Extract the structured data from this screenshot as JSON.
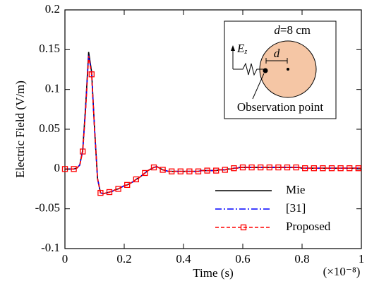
{
  "chart_data": {
    "type": "line",
    "xlabel": "Time (s)",
    "ylabel": "Electric Field (V/m)",
    "x_scale_note": "(×10⁻⁸)",
    "x": [
      0,
      0.01,
      0.02,
      0.03,
      0.04,
      0.05,
      0.06,
      0.07,
      0.08,
      0.09,
      0.1,
      0.11,
      0.12,
      0.13,
      0.14,
      0.15,
      0.16,
      0.17,
      0.18,
      0.19,
      0.2,
      0.21,
      0.22,
      0.23,
      0.24,
      0.25,
      0.26,
      0.27,
      0.28,
      0.29,
      0.3,
      0.31,
      0.32,
      0.33,
      0.34,
      0.35,
      0.36,
      0.37,
      0.38,
      0.39,
      0.4,
      0.41,
      0.42,
      0.43,
      0.44,
      0.45,
      0.46,
      0.47,
      0.48,
      0.49,
      0.5,
      0.51,
      0.52,
      0.53,
      0.54,
      0.55,
      0.56,
      0.57,
      0.58,
      0.59,
      0.6,
      0.61,
      0.62,
      0.63,
      0.64,
      0.65,
      0.66,
      0.67,
      0.68,
      0.69,
      0.7,
      0.71,
      0.72,
      0.73,
      0.74,
      0.75,
      0.76,
      0.77,
      0.78,
      0.79,
      0.8,
      0.81,
      0.82,
      0.83,
      0.84,
      0.85,
      0.86,
      0.87,
      0.88,
      0.89,
      0.9,
      0.91,
      0.92,
      0.93,
      0.94,
      0.95,
      0.96,
      0.97,
      0.98,
      0.99,
      1
    ],
    "series": [
      {
        "name": "Mie",
        "color": "#000000",
        "dash": "",
        "markers": false,
        "values": [
          0,
          0,
          0,
          0,
          0.001,
          0.005,
          0.024,
          0.08,
          0.147,
          0.122,
          0.05,
          -0.012,
          -0.03,
          -0.031,
          -0.03,
          -0.029,
          -0.028,
          -0.026,
          -0.025,
          -0.023,
          -0.021,
          -0.02,
          -0.018,
          -0.016,
          -0.013,
          -0.011,
          -0.008,
          -0.005,
          -0.002,
          0,
          0.002,
          0.003,
          0.001,
          -0.001,
          -0.002,
          -0.003,
          -0.003,
          -0.003,
          -0.003,
          -0.003,
          -0.003,
          -0.003,
          -0.003,
          -0.003,
          -0.003,
          -0.003,
          -0.002,
          -0.002,
          -0.002,
          -0.002,
          -0.002,
          -0.002,
          -0.001,
          -0.001,
          -0.001,
          0,
          0,
          0.001,
          0.001,
          0.002,
          0.002,
          0.002,
          0.002,
          0.002,
          0.002,
          0.002,
          0.002,
          0.002,
          0.002,
          0.002,
          0.002,
          0.002,
          0.002,
          0.002,
          0.002,
          0.002,
          0.002,
          0.002,
          0.002,
          0.002,
          0.001,
          0.001,
          0.001,
          0.001,
          0.001,
          0.001,
          0.001,
          0.001,
          0.001,
          0.001,
          0.001,
          0.001,
          0.001,
          0.001,
          0.001,
          0.001,
          0.001,
          0.001,
          0.001,
          0.001,
          0.001
        ]
      },
      {
        "name": "[31]",
        "color": "#0000ff",
        "dash": "9 3 2 3",
        "markers": false,
        "values": [
          0,
          0,
          0,
          0,
          0.001,
          0.005,
          0.023,
          0.078,
          0.144,
          0.12,
          0.05,
          -0.012,
          -0.03,
          -0.031,
          -0.03,
          -0.029,
          -0.028,
          -0.026,
          -0.025,
          -0.023,
          -0.021,
          -0.02,
          -0.018,
          -0.016,
          -0.013,
          -0.011,
          -0.008,
          -0.005,
          -0.002,
          0,
          0.002,
          0.003,
          0.001,
          -0.001,
          -0.002,
          -0.003,
          -0.003,
          -0.003,
          -0.003,
          -0.003,
          -0.003,
          -0.003,
          -0.003,
          -0.003,
          -0.003,
          -0.003,
          -0.002,
          -0.002,
          -0.002,
          -0.002,
          -0.002,
          -0.002,
          -0.001,
          -0.001,
          -0.001,
          0,
          0,
          0.001,
          0.001,
          0.002,
          0.002,
          0.002,
          0.002,
          0.002,
          0.002,
          0.002,
          0.002,
          0.002,
          0.002,
          0.002,
          0.002,
          0.002,
          0.002,
          0.002,
          0.002,
          0.002,
          0.002,
          0.002,
          0.002,
          0.002,
          0.001,
          0.001,
          0.001,
          0.001,
          0.001,
          0.001,
          0.001,
          0.001,
          0.001,
          0.001,
          0.001,
          0.001,
          0.001,
          0.001,
          0.001,
          0.001,
          0.001,
          0.001,
          0.001,
          0.001,
          0.001
        ]
      },
      {
        "name": "Proposed",
        "color": "#ff0000",
        "dash": "5 3",
        "markers": true,
        "values": [
          0,
          0,
          0,
          0,
          0.001,
          0.005,
          0.022,
          0.075,
          0.142,
          0.119,
          0.05,
          -0.012,
          -0.03,
          -0.031,
          -0.03,
          -0.029,
          -0.028,
          -0.026,
          -0.025,
          -0.023,
          -0.021,
          -0.02,
          -0.018,
          -0.016,
          -0.013,
          -0.011,
          -0.008,
          -0.005,
          -0.002,
          0,
          0.002,
          0.003,
          0.001,
          -0.001,
          -0.002,
          -0.003,
          -0.003,
          -0.003,
          -0.003,
          -0.003,
          -0.003,
          -0.003,
          -0.003,
          -0.003,
          -0.003,
          -0.003,
          -0.002,
          -0.002,
          -0.002,
          -0.002,
          -0.002,
          -0.002,
          -0.001,
          -0.001,
          -0.001,
          0,
          0,
          0.001,
          0.001,
          0.002,
          0.002,
          0.002,
          0.002,
          0.002,
          0.002,
          0.002,
          0.002,
          0.002,
          0.002,
          0.002,
          0.002,
          0.002,
          0.002,
          0.002,
          0.002,
          0.002,
          0.002,
          0.002,
          0.002,
          0.002,
          0.001,
          0.001,
          0.001,
          0.001,
          0.001,
          0.001,
          0.001,
          0.001,
          0.001,
          0.001,
          0.001,
          0.001,
          0.001,
          0.001,
          0.001,
          0.001,
          0.001,
          0.001,
          0.001,
          0.001,
          0.001
        ]
      }
    ],
    "xlim": [
      0,
      1
    ],
    "xticks": [
      0,
      0.2,
      0.4,
      0.6,
      0.8,
      1
    ],
    "ylim": [
      -0.1,
      0.2
    ],
    "yticks": [
      -0.1,
      -0.05,
      0,
      0.05,
      0.1,
      0.15,
      0.2
    ],
    "legend": "lower right",
    "inset": {
      "d_symbol": "d",
      "d_value": "=8 cm",
      "field": "E",
      "field_sub": "z",
      "distance": "d",
      "point": "Observation point"
    }
  }
}
